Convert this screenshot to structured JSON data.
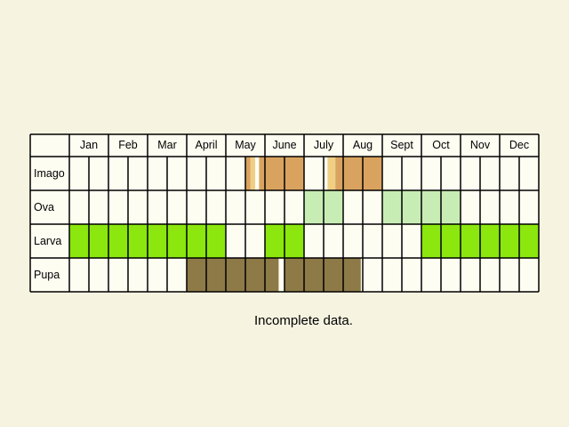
{
  "months": [
    "Jan",
    "Feb",
    "Mar",
    "April",
    "May",
    "June",
    "July",
    "Aug",
    "Sept",
    "Oct",
    "Nov",
    "Dec"
  ],
  "colors": {
    "background": "#f6f4e1",
    "cell": "#fefdf2",
    "imago": "#d9a35f",
    "imago_light": "#f0cf85",
    "ova": "#c7edb4",
    "larva": "#8be70d",
    "pupa": "#8d7a47",
    "line": "#000000"
  },
  "rows": [
    {
      "label": "Imago",
      "blocks": [
        {
          "start": 9.0,
          "end": 9.25,
          "tone": "imago"
        },
        {
          "start": 9.25,
          "end": 9.5,
          "tone": "imago_light"
        },
        {
          "start": 9.7,
          "end": 12.0,
          "tone": "imago"
        },
        {
          "start": 13.2,
          "end": 13.6,
          "tone": "imago_light"
        },
        {
          "start": 13.6,
          "end": 16.0,
          "tone": "imago"
        }
      ]
    },
    {
      "label": "Ova",
      "blocks": [
        {
          "start": 12.0,
          "end": 14.0,
          "tone": "ova"
        },
        {
          "start": 16.0,
          "end": 20.0,
          "tone": "ova"
        }
      ]
    },
    {
      "label": "Larva",
      "blocks": [
        {
          "start": 0.0,
          "end": 8.0,
          "tone": "larva"
        },
        {
          "start": 10.0,
          "end": 12.0,
          "tone": "larva"
        },
        {
          "start": 18.0,
          "end": 24.0,
          "tone": "larva"
        }
      ]
    },
    {
      "label": "Pupa",
      "blocks": [
        {
          "start": 6.0,
          "end": 10.7,
          "tone": "pupa"
        },
        {
          "start": 11.0,
          "end": 14.9,
          "tone": "pupa"
        }
      ]
    }
  ],
  "note": "Incomplete data."
}
